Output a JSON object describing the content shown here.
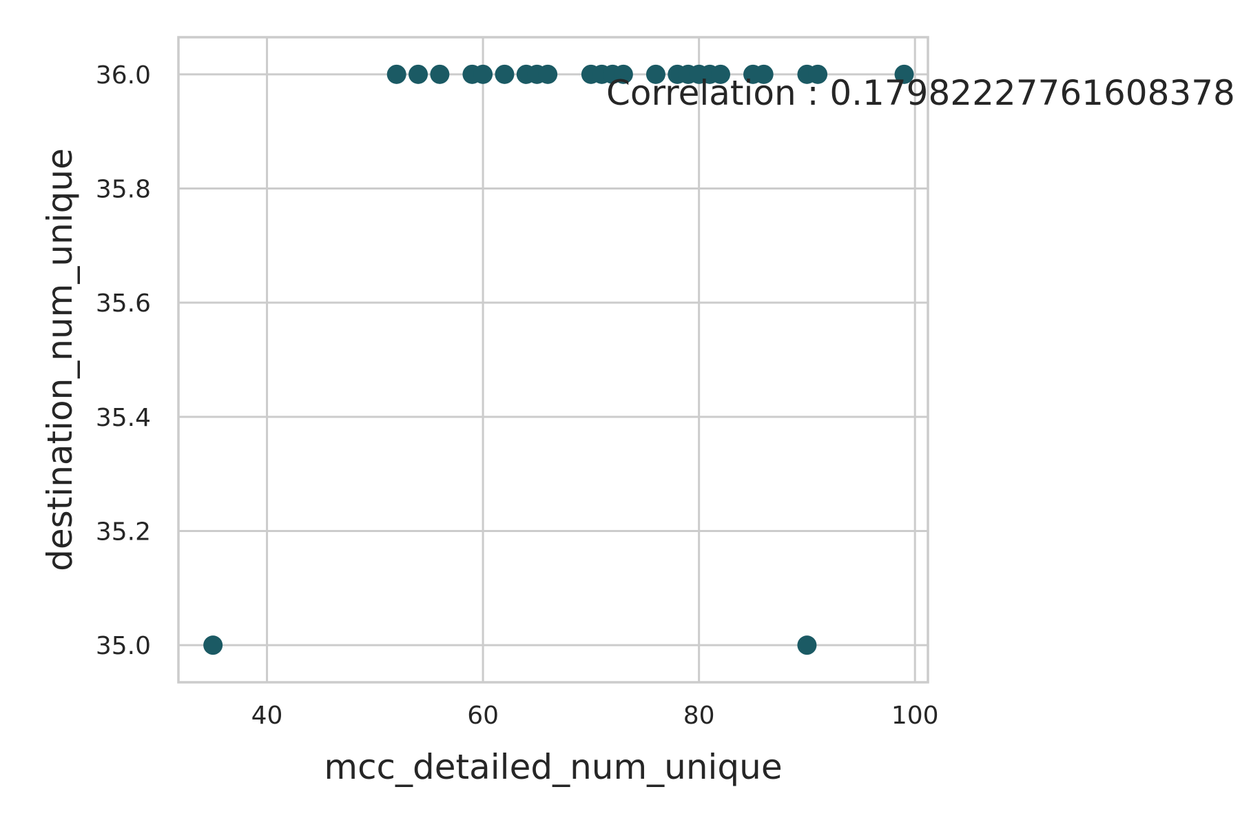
{
  "colors": {
    "marker": "#1b5a64",
    "grid": "#cccccc",
    "text": "#262626",
    "background": "#ffffff"
  },
  "chart_data": {
    "type": "scatter",
    "title": "",
    "xlabel": "mcc_detailed_num_unique",
    "ylabel": "destination_num_unique",
    "xlim": [
      31.8,
      101.2
    ],
    "ylim": [
      34.935,
      36.065
    ],
    "xticks": [
      40,
      60,
      80,
      100
    ],
    "yticks": [
      35.0,
      35.2,
      35.4,
      35.6,
      35.8,
      36.0
    ],
    "xtick_labels": [
      "40",
      "60",
      "80",
      "100"
    ],
    "ytick_labels": [
      "35.0",
      "35.2",
      "35.4",
      "35.6",
      "35.8",
      "36.0"
    ],
    "grid": true,
    "annotation": "Correlation : 0.17982227761608378",
    "series": [
      {
        "x": [
          52,
          54,
          56,
          59,
          60,
          62,
          64,
          65,
          66,
          70,
          71,
          72,
          73,
          76,
          78,
          79,
          80,
          81,
          82,
          85,
          86,
          90,
          91,
          99,
          35,
          90
        ],
        "y": [
          36,
          36,
          36,
          36,
          36,
          36,
          36,
          36,
          36,
          36,
          36,
          36,
          36,
          36,
          36,
          36,
          36,
          36,
          36,
          36,
          36,
          36,
          36,
          36,
          35,
          35
        ]
      }
    ]
  }
}
